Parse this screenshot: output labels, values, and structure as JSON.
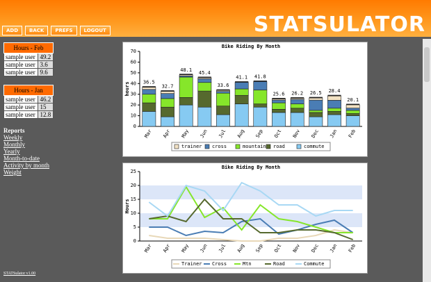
{
  "header": {
    "logo": "STATSULATOR",
    "nav": [
      "ADD",
      "BACK",
      "PREFS",
      "LOGOUT"
    ]
  },
  "sidebar": {
    "tables": [
      {
        "title": "Hours - Feb",
        "rows": [
          [
            "sample user",
            49.2
          ],
          [
            "sample user",
            3.6
          ],
          [
            "sample user",
            9.6
          ]
        ]
      },
      {
        "title": "Hours - Jan",
        "rows": [
          [
            "sample user",
            46.2
          ],
          [
            "sample user",
            15.0
          ],
          [
            "sample user",
            12.8
          ]
        ]
      }
    ],
    "reports": {
      "title": "Reports",
      "links": [
        "Weekly",
        "Monthly",
        "Yearly",
        "Month-to-date",
        "Activity by month",
        "Weight"
      ]
    },
    "footer": "STATSulator v1.00"
  },
  "chart_data": [
    {
      "type": "bar",
      "title": "Bike Riding By Month",
      "y_label": "hours",
      "categories": [
        "Mar",
        "Apr",
        "May",
        "Jun",
        "Jul",
        "Aug",
        "Sep",
        "Oct",
        "Nov",
        "Dec",
        "Jan",
        "Feb"
      ],
      "series": [
        {
          "name": "trainer",
          "color": "#f2e2c4",
          "values": [
            2,
            2,
            1,
            1,
            1,
            0,
            0,
            1,
            1,
            2,
            4,
            3
          ]
        },
        {
          "name": "cross",
          "color": "#4a7db4",
          "values": [
            4.5,
            4.7,
            1.1,
            3.4,
            1.6,
            6.1,
            7.8,
            2.6,
            4.2,
            9.5,
            7.4,
            2.1
          ]
        },
        {
          "name": "mountain",
          "color": "#86e62a",
          "values": [
            8,
            8,
            19,
            8,
            12,
            6,
            13,
            6,
            4,
            2,
            3,
            3
          ]
        },
        {
          "name": "road",
          "color": "#56692e",
          "values": [
            8,
            9,
            7,
            15,
            8,
            8,
            3,
            3,
            4,
            4,
            3,
            2
          ]
        },
        {
          "name": "commute",
          "color": "#86caf2",
          "values": [
            14,
            9,
            20,
            18,
            11,
            21,
            18,
            13,
            13,
            9,
            11,
            10
          ]
        }
      ],
      "totals": [
        36.5,
        32.7,
        48.1,
        45.4,
        33.6,
        41.1,
        41.8,
        25.6,
        26.2,
        26.5,
        28.4,
        20.1
      ],
      "ylim": [
        0,
        70
      ],
      "yticks": [
        0,
        10,
        20,
        30,
        40,
        50,
        60,
        70
      ],
      "grid": false
    },
    {
      "type": "line",
      "title": "Bike Riding By Month",
      "y_label": "Hours",
      "categories": [
        "Mar",
        "Apr",
        "May",
        "Jun",
        "Jul",
        "Aug",
        "Sep",
        "Oct",
        "Nov",
        "Dec",
        "Jan",
        "Feb"
      ],
      "series": [
        {
          "name": "Trainer",
          "color": "#e8d8b8",
          "values": [
            2,
            1,
            1,
            1,
            0.5,
            0,
            0,
            1,
            1,
            2,
            4,
            3
          ]
        },
        {
          "name": "Cross",
          "color": "#4a7db4",
          "values": [
            5,
            5,
            2,
            3.5,
            3,
            7,
            8,
            2.5,
            4,
            6,
            7.5,
            3
          ]
        },
        {
          "name": "Mtn",
          "color": "#86e62a",
          "values": [
            8,
            8,
            19.5,
            8.5,
            12,
            4,
            13,
            8,
            7,
            5,
            3,
            3
          ]
        },
        {
          "name": "Road",
          "color": "#56692e",
          "values": [
            8,
            9,
            7,
            15,
            8,
            8,
            3,
            3,
            4,
            4,
            3,
            0.5
          ]
        },
        {
          "name": "Commute",
          "color": "#a8d8f4",
          "values": [
            14,
            9,
            20,
            18,
            11,
            21,
            18,
            13,
            13,
            9,
            11,
            11
          ]
        }
      ],
      "ylim": [
        0,
        25
      ],
      "yticks": [
        0,
        5,
        10,
        15,
        20,
        25
      ],
      "grid": true
    }
  ]
}
